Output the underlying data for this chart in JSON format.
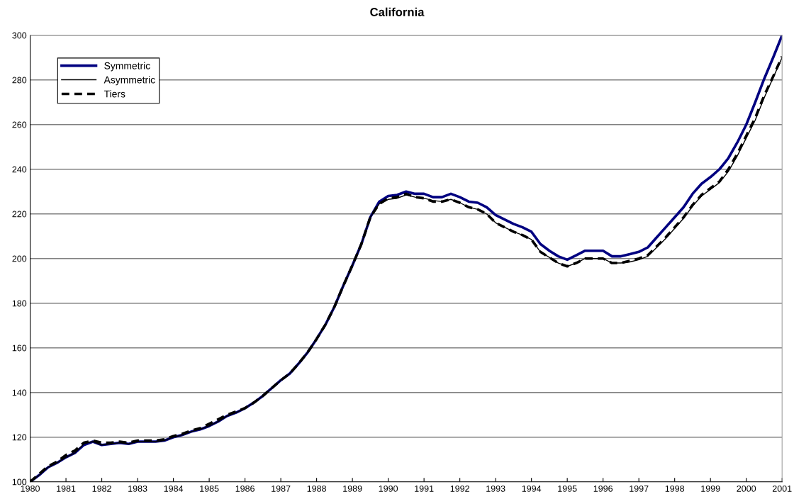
{
  "chart_data": {
    "type": "line",
    "title": "California",
    "x": [
      1980,
      1980.25,
      1980.5,
      1980.75,
      1981,
      1981.25,
      1981.5,
      1981.75,
      1982,
      1982.25,
      1982.5,
      1982.75,
      1983,
      1983.25,
      1983.5,
      1983.75,
      1984,
      1984.25,
      1984.5,
      1984.75,
      1985,
      1985.25,
      1985.5,
      1985.75,
      1986,
      1986.25,
      1986.5,
      1986.75,
      1987,
      1987.25,
      1987.5,
      1987.75,
      1988,
      1988.25,
      1988.5,
      1988.75,
      1989,
      1989.25,
      1989.5,
      1989.75,
      1990,
      1990.25,
      1990.5,
      1990.75,
      1991,
      1991.25,
      1991.5,
      1991.75,
      1992,
      1992.25,
      1992.5,
      1992.75,
      1993,
      1993.25,
      1993.5,
      1993.75,
      1994,
      1994.25,
      1994.5,
      1994.75,
      1995,
      1995.25,
      1995.5,
      1995.75,
      1996,
      1996.25,
      1996.5,
      1996.75,
      1997,
      1997.25,
      1997.5,
      1997.75,
      1998,
      1998.25,
      1998.5,
      1998.75,
      1999,
      1999.25,
      1999.5,
      1999.75,
      2000,
      2000.25,
      2000.5,
      2000.75,
      2001
    ],
    "series": [
      {
        "name": "Symmetric",
        "color": "#000080",
        "line_style": "solid",
        "values": [
          100,
          103,
          106.5,
          108.5,
          111,
          113,
          116.5,
          118,
          116.5,
          117,
          117.5,
          117,
          118,
          118,
          118,
          118.5,
          120,
          121,
          122.5,
          123.5,
          125,
          127,
          129.5,
          131,
          133,
          135.5,
          138.5,
          142,
          145.5,
          148.5,
          153,
          158,
          164,
          170.5,
          178.5,
          188,
          197,
          206.5,
          218.5,
          225.5,
          228,
          228.5,
          230,
          229,
          229,
          227.5,
          227.5,
          229,
          227.5,
          225.5,
          225,
          223,
          219.5,
          217.5,
          215.5,
          214,
          212,
          206.5,
          203.5,
          201,
          199.5,
          201.5,
          203.5,
          203.5,
          203.5,
          201,
          201,
          202,
          203,
          205,
          209.5,
          214,
          218.5,
          223,
          229,
          233.5,
          236.5,
          240,
          245,
          252,
          260,
          270,
          280.5,
          290,
          300
        ]
      },
      {
        "name": "Asymmetric",
        "color": "#000000",
        "line_style": "solid",
        "values": [
          100,
          103,
          106.5,
          108.5,
          111,
          113,
          117,
          118,
          116.5,
          117,
          117.5,
          117,
          118,
          118,
          118,
          118.5,
          120,
          121,
          122.5,
          123.5,
          125,
          127,
          129.5,
          131,
          133,
          135.5,
          138.5,
          142,
          145.5,
          148.5,
          153,
          158,
          164,
          170.5,
          178.5,
          188,
          197,
          206.5,
          218.5,
          224.5,
          226.5,
          227,
          228.5,
          227.5,
          227,
          226,
          225.5,
          226.5,
          225,
          223,
          222,
          220,
          216,
          214,
          212,
          210.5,
          208.5,
          203,
          200.5,
          198,
          196.5,
          198,
          200,
          200,
          200,
          198,
          198,
          198.5,
          199.5,
          201,
          205,
          209,
          213.5,
          218,
          223.5,
          228,
          231,
          234,
          239,
          246,
          254,
          262,
          272,
          281,
          290
        ]
      },
      {
        "name": "Tiers",
        "color": "#000000",
        "line_style": "dashed",
        "values": [
          100,
          103.5,
          107,
          109,
          112,
          114,
          117.5,
          118.5,
          117.5,
          117.5,
          118,
          117.5,
          118.5,
          118.5,
          118.5,
          119,
          120.5,
          121.5,
          123,
          124,
          126,
          128,
          130,
          131.5,
          133,
          135.5,
          138.5,
          142,
          145.5,
          148.5,
          153,
          158,
          164,
          170.5,
          178.5,
          188,
          197,
          206.5,
          218.5,
          224.5,
          227,
          227.5,
          229,
          227.5,
          227,
          225.5,
          225.5,
          226.5,
          225,
          223,
          222,
          220,
          216,
          214,
          212,
          210.5,
          208.5,
          203,
          200.5,
          198,
          196.5,
          198,
          200,
          200,
          200,
          198,
          198,
          199,
          200,
          201.5,
          205.5,
          209.5,
          214,
          218.5,
          224,
          228.5,
          231.5,
          234.5,
          240,
          247,
          255,
          263,
          273,
          281.5,
          290.5
        ]
      }
    ],
    "xlim": [
      1980,
      2001
    ],
    "xticks": [
      1980,
      1981,
      1982,
      1983,
      1984,
      1985,
      1986,
      1987,
      1988,
      1989,
      1990,
      1991,
      1992,
      1993,
      1994,
      1995,
      1996,
      1997,
      1998,
      1999,
      2000,
      2001
    ],
    "ylim": [
      100,
      300
    ],
    "yticks": [
      100,
      120,
      140,
      160,
      180,
      200,
      220,
      240,
      260,
      280,
      300
    ],
    "grid": "y",
    "legend": "top left",
    "marker": "none"
  }
}
